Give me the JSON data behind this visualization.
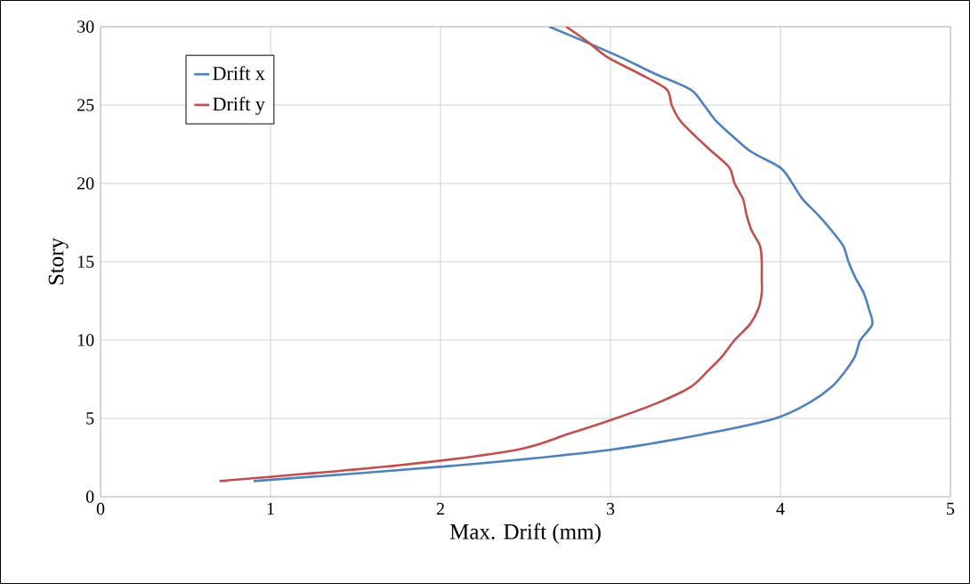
{
  "chart_data": {
    "type": "line",
    "xlabel": "Max. Drift (mm)",
    "ylabel": "Story",
    "xlim": [
      0,
      5
    ],
    "ylim": [
      0,
      30
    ],
    "xticks": [
      0,
      1,
      2,
      3,
      4,
      5
    ],
    "yticks": [
      0,
      5,
      10,
      15,
      20,
      25,
      30
    ],
    "grid": true,
    "legend": "top left",
    "series": [
      {
        "name": "Drift x",
        "color": "#4f81bd",
        "x": [
          0.9,
          2.1,
          3.0,
          3.55,
          3.97,
          4.17,
          4.3,
          4.38,
          4.44,
          4.47,
          4.54,
          4.52,
          4.49,
          4.44,
          4.4,
          4.37,
          4.3,
          4.22,
          4.13,
          4.07,
          4.0,
          3.83,
          3.72,
          3.62,
          3.55,
          3.47,
          3.26,
          3.07,
          2.86,
          2.64
        ],
        "values": [
          1,
          2,
          3,
          4,
          5,
          6,
          7,
          8,
          9,
          10,
          11,
          12,
          13,
          14,
          15,
          16,
          17,
          18,
          19,
          20,
          21,
          22,
          23,
          24,
          25,
          26,
          27,
          28,
          29,
          30
        ]
      },
      {
        "name": "Drift y",
        "color": "#c0504d",
        "x": [
          0.7,
          1.75,
          2.45,
          2.75,
          3.03,
          3.28,
          3.47,
          3.57,
          3.66,
          3.73,
          3.82,
          3.87,
          3.89,
          3.89,
          3.89,
          3.88,
          3.83,
          3.8,
          3.78,
          3.73,
          3.7,
          3.6,
          3.5,
          3.41,
          3.36,
          3.33,
          3.17,
          2.99,
          2.87,
          2.74
        ],
        "values": [
          1,
          2,
          3,
          4,
          5,
          6,
          7,
          8,
          9,
          10,
          11,
          12,
          13,
          14,
          15,
          16,
          17,
          18,
          19,
          20,
          21,
          22,
          23,
          24,
          25,
          26,
          27,
          28,
          29,
          30
        ]
      }
    ]
  }
}
